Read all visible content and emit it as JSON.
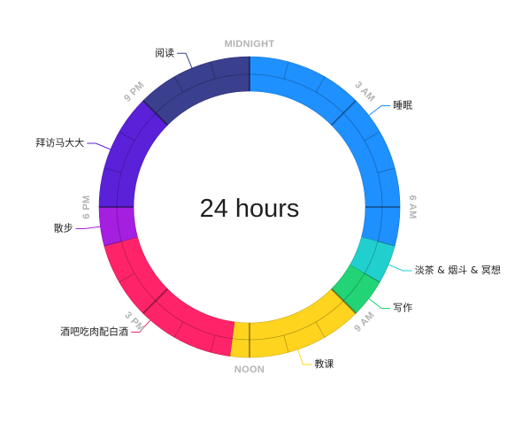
{
  "chart_data": {
    "type": "pie",
    "variant": "24-hour radial ring",
    "center_label": "24 hours",
    "total_hours": 24,
    "tick_labels": [
      {
        "hour": 0,
        "text": "MIDNIGHT"
      },
      {
        "hour": 3,
        "text": "3 AM"
      },
      {
        "hour": 6,
        "text": "6 AM"
      },
      {
        "hour": 9,
        "text": "9 AM"
      },
      {
        "hour": 12,
        "text": "NOON"
      },
      {
        "hour": 15,
        "text": "3 PM"
      },
      {
        "hour": 18,
        "text": "6 PM"
      },
      {
        "hour": 21,
        "text": "9 PM"
      }
    ],
    "segments": [
      {
        "label": "睡眠",
        "start": 0,
        "end": 7,
        "hours": 7,
        "color": "#1e90ff"
      },
      {
        "label": "淡茶 & 烟斗 & 冥想",
        "start": 7,
        "end": 8,
        "hours": 1,
        "color": "#22cfcf"
      },
      {
        "label": "写作",
        "start": 8,
        "end": 9,
        "hours": 1,
        "color": "#22d476"
      },
      {
        "label": "教课",
        "start": 9,
        "end": 12.5,
        "hours": 3.5,
        "color": "#ffd41e"
      },
      {
        "label": "酒吧吃肉配白酒",
        "start": 12.5,
        "end": 17,
        "hours": 4.5,
        "color": "#ff2469"
      },
      {
        "label": "散步",
        "start": 17,
        "end": 18,
        "hours": 1,
        "color": "#a41fe0"
      },
      {
        "label": "拜访马大大",
        "start": 18,
        "end": 21,
        "hours": 3,
        "color": "#5b21d8"
      },
      {
        "label": "阅读",
        "start": 21,
        "end": 24,
        "hours": 3,
        "color": "#3a3f8e"
      }
    ]
  }
}
